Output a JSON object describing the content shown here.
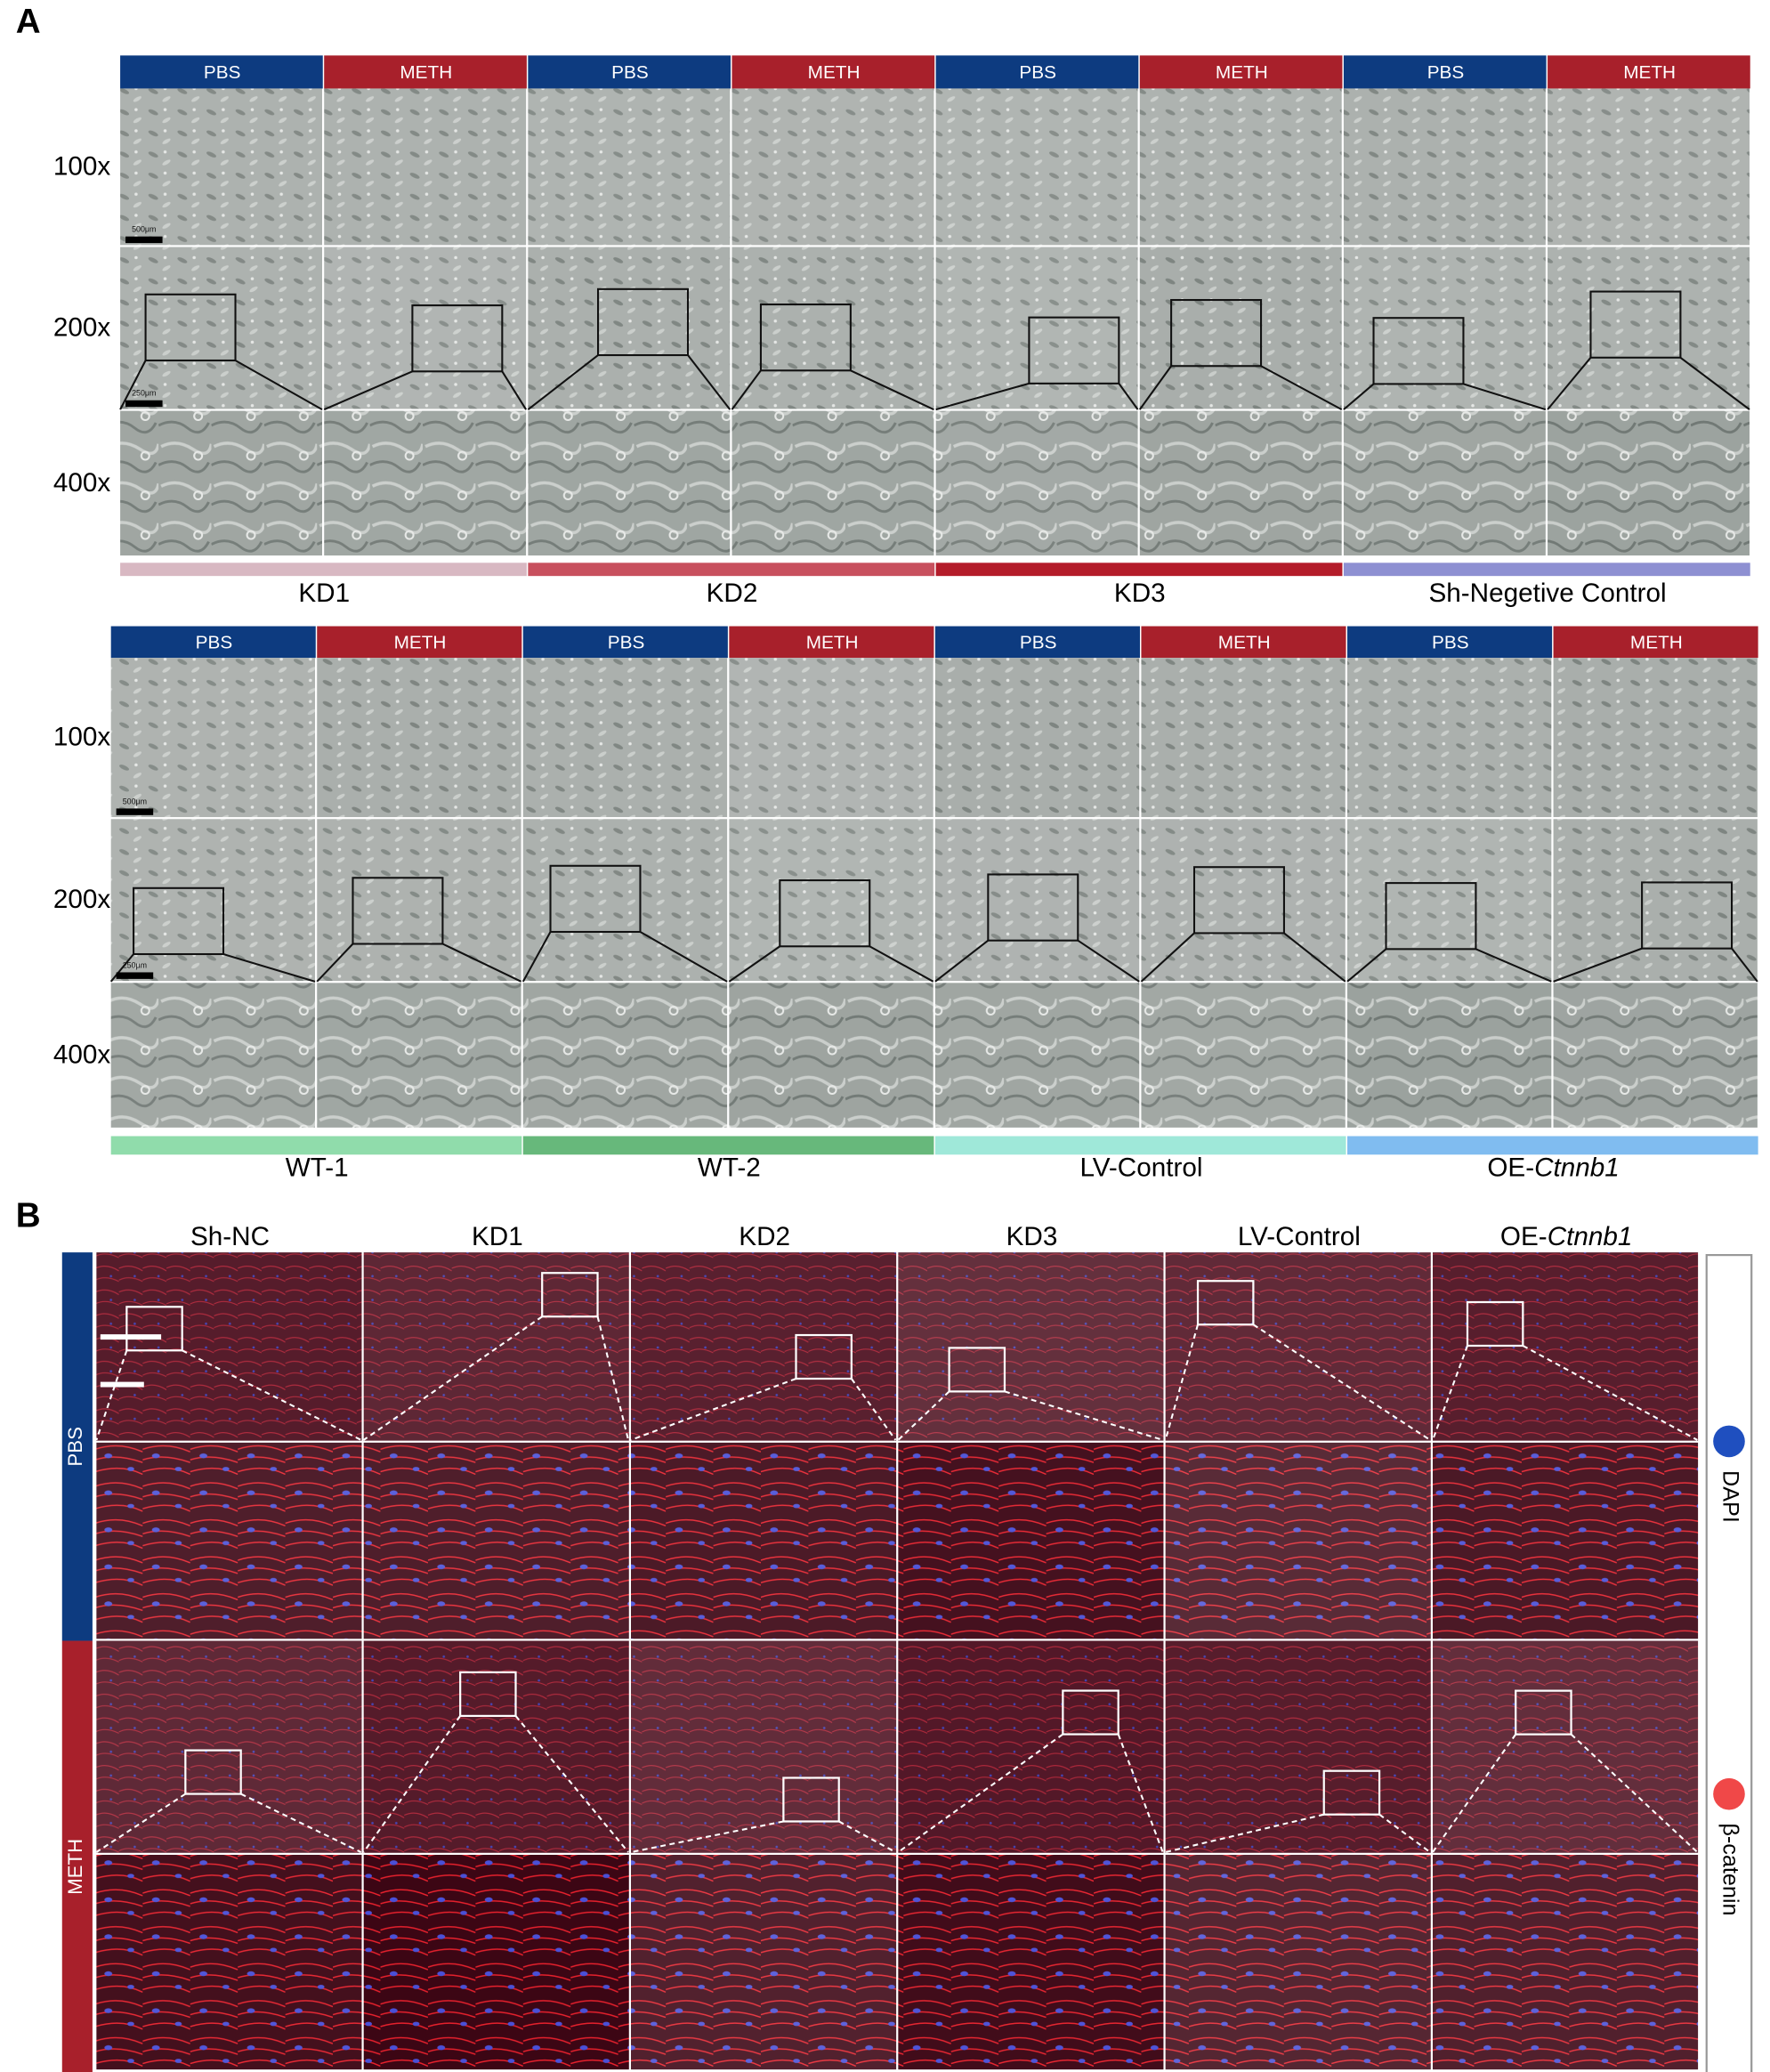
{
  "panel_a": {
    "label": "A",
    "conditions": [
      {
        "name": "PBS",
        "color": "#0d3b80"
      },
      {
        "name": "METH",
        "color": "#a8202b"
      }
    ],
    "magnifications": [
      "100x",
      "200x",
      "400x"
    ],
    "scale_bars": [
      "500μm",
      "250μm"
    ],
    "blocks": [
      {
        "groups": [
          {
            "name": "KD1",
            "color": "#d8b8c2"
          },
          {
            "name": "KD2",
            "color": "#c8505e"
          },
          {
            "name": "KD3",
            "color": "#b41c2a"
          },
          {
            "name": "Sh-Negetive Control",
            "color": "#8e90d2"
          }
        ]
      },
      {
        "groups": [
          {
            "name": "WT-1",
            "color": "#90dcab"
          },
          {
            "name": "WT-2",
            "color": "#67b87b"
          },
          {
            "name": "LV-Control",
            "color": "#9fe8d9"
          },
          {
            "name": "OE-",
            "name_italic": "Ctnnb1",
            "color": "#80bcf0"
          }
        ]
      }
    ]
  },
  "panel_b": {
    "label": "B",
    "columns": [
      {
        "name": "Sh-NC"
      },
      {
        "name": "KD1"
      },
      {
        "name": "KD2"
      },
      {
        "name": "KD3"
      },
      {
        "name": "LV-Control"
      },
      {
        "name": "OE-",
        "name_italic": "Ctnnb1"
      }
    ],
    "rows": [
      {
        "name": "PBS",
        "color": "#0d3b80"
      },
      {
        "name": "METH",
        "color": "#a8202b"
      }
    ],
    "stains": [
      {
        "name": "DAPI",
        "color": "#1f4fbf"
      },
      {
        "name": "β-catenin",
        "color": "#f04848"
      }
    ]
  }
}
